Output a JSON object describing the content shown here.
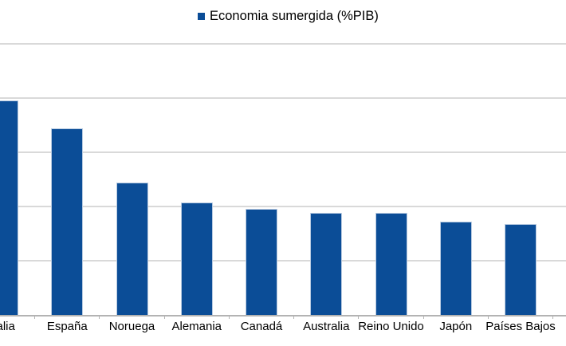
{
  "legend": {
    "label": "Economia sumergida (%PIB)"
  },
  "colors": {
    "bar": "#0b4d97",
    "bar_border": "#b9cbe1",
    "gridline": "#d9d9d9",
    "axis_line": "#b3b3b3",
    "text": "#000000",
    "background": "#ffffff"
  },
  "chart_data": {
    "type": "bar",
    "title": "",
    "legend_entries": [
      "Economia sumergida (%PIB)"
    ],
    "legend_position": "top",
    "categories": [
      "Italia",
      "España",
      "Noruega",
      "Alemania",
      "Canadá",
      "Australia",
      "Reino Unido",
      "Japón",
      "Países Bajos"
    ],
    "series": [
      {
        "name": "Economia sumergida (%PIB)",
        "values": [
          19.8,
          17.2,
          12.2,
          10.4,
          9.8,
          9.4,
          9.4,
          8.6,
          8.4
        ]
      }
    ],
    "xlabel": "",
    "ylabel": "",
    "ylim": [
      0,
      25
    ],
    "gridline_step": 5,
    "grid": "horizontal",
    "y_axis_labels_visible": false,
    "first_category_partially_cropped": true
  }
}
